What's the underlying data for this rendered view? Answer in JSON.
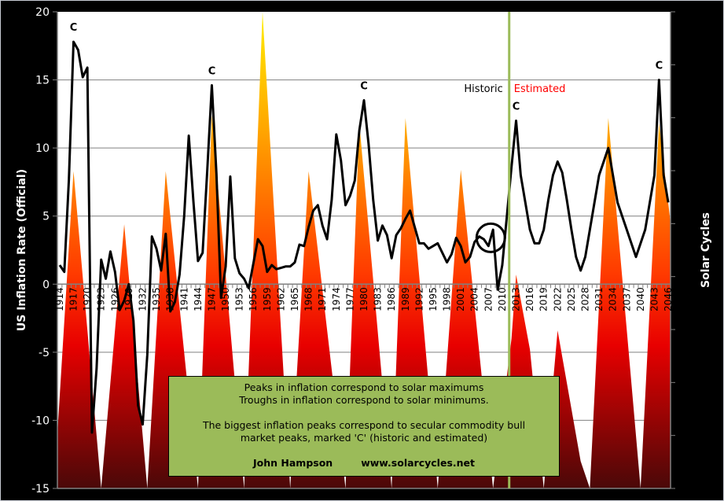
{
  "chart_data": {
    "type": "line",
    "title": "",
    "ylabel": "US Inflation Rate (Official)",
    "y2label": "Solar Cycles",
    "ylim": [
      -15,
      20
    ],
    "y_ticks": [
      "20",
      "15",
      "10",
      "5",
      "0",
      "-5",
      "-10",
      "-15"
    ],
    "y_tick_values": [
      20,
      15,
      10,
      5,
      0,
      -5,
      -10,
      -15
    ],
    "xlim": [
      1914,
      2046
    ],
    "x_tick_labels": [
      "1914",
      "1917",
      "1920",
      "1923",
      "1926",
      "1929",
      "1932",
      "1935",
      "1938",
      "1941",
      "1944",
      "1947",
      "1950",
      "1953",
      "1956",
      "1959",
      "1962",
      "1965",
      "1968",
      "1971",
      "1974",
      "1977",
      "1980",
      "1983",
      "1986",
      "1989",
      "1992",
      "1995",
      "1998",
      "2001",
      "2004",
      "2007",
      "2010",
      "2013",
      "2016",
      "2019",
      "2022",
      "2025",
      "2028",
      "2031",
      "2034",
      "2037",
      "2040",
      "2043",
      "2046"
    ],
    "grid": true,
    "divider_year": 2011.5,
    "divider_labels": {
      "historic": "Historic",
      "estimated": "Estimated"
    },
    "colors": {
      "line": "#000000",
      "divider": "#9bbb59",
      "estimated_text": "#ff0000",
      "grid": "#808080"
    },
    "series": [
      {
        "name": "US Inflation Rate",
        "type": "line",
        "start_year": 1914,
        "values": [
          1.4,
          0.9,
          7.7,
          17.8,
          17.2,
          15.2,
          15.9,
          -10.9,
          -6.2,
          1.8,
          0.4,
          2.4,
          0.9,
          -1.9,
          -1.2,
          0.0,
          -2.7,
          -8.9,
          -10.3,
          -5.2,
          3.5,
          2.6,
          1.0,
          3.7,
          -2.0,
          -1.3,
          0.7,
          5.0,
          10.9,
          6.1,
          1.7,
          2.3,
          8.3,
          14.6,
          8.1,
          -1.0,
          1.3,
          7.9,
          1.9,
          0.8,
          0.4,
          -0.3,
          1.5,
          3.3,
          2.8,
          0.9,
          1.4,
          1.1,
          1.2,
          1.3,
          1.3,
          1.6,
          2.9,
          2.8,
          4.2,
          5.4,
          5.8,
          4.3,
          3.3,
          6.2,
          11.0,
          9.1,
          5.8,
          6.5,
          7.6,
          11.3,
          13.5,
          10.3,
          6.2,
          3.2,
          4.3,
          3.6,
          1.9,
          3.6,
          4.1,
          4.8,
          5.4,
          4.2,
          3.0,
          3.0,
          2.6,
          2.8,
          3.0,
          2.3,
          1.6,
          2.2,
          3.4,
          2.8,
          1.6,
          2.0,
          3.1,
          3.5,
          3.3,
          2.8,
          4.0,
          -0.4,
          1.4,
          5.0,
          8.6,
          12.0,
          8.0,
          6.0,
          4.0,
          3.0,
          3.0,
          4.0,
          6.2,
          8.0,
          9.0,
          8.2,
          6.2,
          4.0,
          2.0,
          1.0,
          2.0,
          4.0,
          6.0,
          8.0,
          9.0,
          10.0,
          8.0,
          6.0,
          5.0,
          4.0,
          3.0,
          2.0,
          3.0,
          4.0,
          6.0,
          8.0,
          15.0,
          8.0,
          6.0
        ]
      },
      {
        "name": "Solar Cycles",
        "type": "area",
        "points": [
          [
            1914,
            -11
          ],
          [
            1917,
            8.3
          ],
          [
            1923,
            -15
          ],
          [
            1928,
            4.4
          ],
          [
            1933,
            -15
          ],
          [
            1937,
            8.3
          ],
          [
            1944,
            -15
          ],
          [
            1947,
            12.4
          ],
          [
            1954,
            -15
          ],
          [
            1958,
            20
          ],
          [
            1964,
            -15
          ],
          [
            1968,
            8.3
          ],
          [
            1976,
            -15
          ],
          [
            1979,
            11.8
          ],
          [
            1986,
            -15
          ],
          [
            1989,
            12.2
          ],
          [
            1996,
            -15
          ],
          [
            2001,
            8.4
          ],
          [
            2008,
            -15
          ],
          [
            2012,
            -4
          ],
          [
            2013,
            0.7
          ],
          [
            2016,
            -4.8
          ],
          [
            2019,
            -15
          ],
          [
            2022,
            -3.4
          ],
          [
            2027,
            -13
          ],
          [
            2029,
            -15
          ],
          [
            2033,
            12.2
          ],
          [
            2040,
            -15
          ],
          [
            2044,
            11.8
          ],
          [
            2046,
            4.5
          ]
        ]
      }
    ],
    "annotations": [
      {
        "text": "C",
        "year": 1917,
        "value": 17.8
      },
      {
        "text": "C",
        "year": 1947,
        "value": 14.6
      },
      {
        "text": "C",
        "year": 1980,
        "value": 13.5
      },
      {
        "text": "C",
        "year": 2013,
        "value": 12.0
      },
      {
        "text": "C",
        "year": 2044,
        "value": 15.0
      }
    ],
    "circle_highlight_year": 2007.5,
    "circle_highlight_value": 3.4
  },
  "note": {
    "line1": "Peaks in inflation  correspond to solar maximums",
    "line2": "Troughs in inflation  correspond to solar minimums.",
    "line3": "The biggest  inflation peaks   correspond to secular commodity  bull",
    "line4": "market peaks,  marked 'C' (historic and estimated)",
    "author": "John Hampson",
    "website": "www.solarcycles.net"
  }
}
